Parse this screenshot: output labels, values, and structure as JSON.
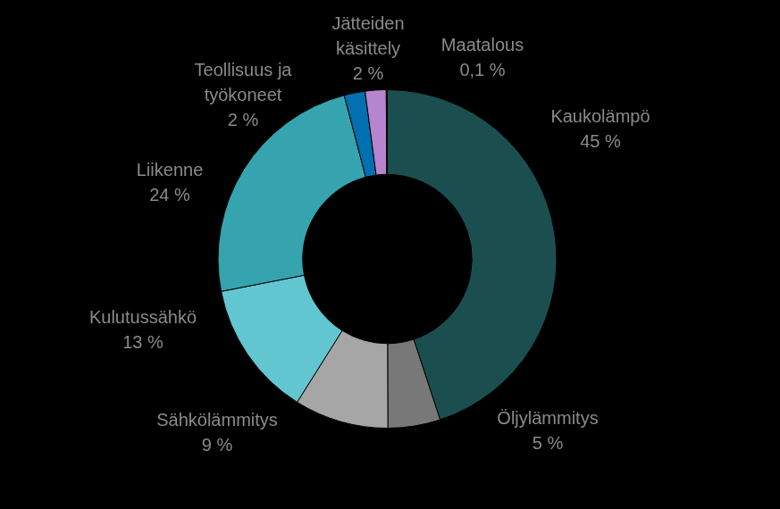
{
  "chart_data": {
    "type": "doughnut",
    "categories": [
      "Kaukolämpö",
      "Öljylämmitys",
      "Sähkölämmitys",
      "Kulutussähkö",
      "Liikenne",
      "Teollisuus ja työkoneet",
      "Jätteiden käsittely",
      "Maatalous"
    ],
    "values": [
      45,
      5,
      9,
      13,
      24,
      2,
      2,
      0.1
    ],
    "value_labels": [
      "45 %",
      "5 %",
      "9 %",
      "13 %",
      "24 %",
      "2 %",
      "2 %",
      "0,1 %"
    ],
    "colors": [
      "#1b4f4f",
      "#787878",
      "#a6a6a6",
      "#62c6d0",
      "#35a4ae",
      "#0070b0",
      "#b784d0",
      "#92d050"
    ],
    "data_labels": true
  }
}
